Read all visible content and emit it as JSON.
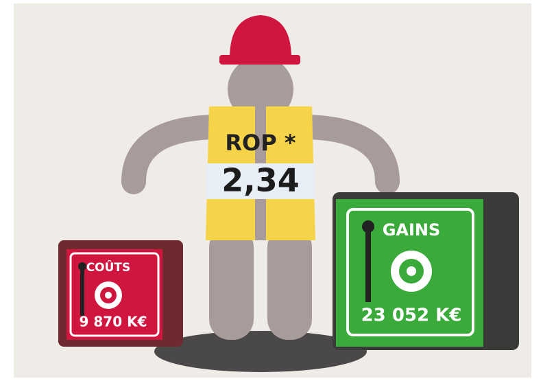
{
  "center": {
    "label": "ROP *",
    "value": "2,34"
  },
  "costs": {
    "label": "COÛTS",
    "value": "9 870 K€"
  },
  "gains": {
    "label": "GAINS",
    "value": "23 052 K€"
  }
}
